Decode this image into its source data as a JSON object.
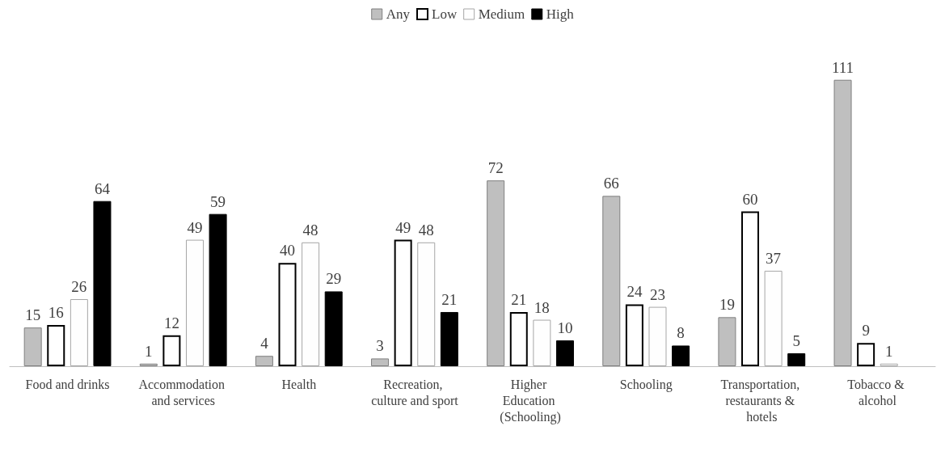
{
  "chart_data": {
    "type": "bar",
    "categories": [
      "Food and drinks",
      "Accommodation and services",
      "Health",
      "Recreation, culture and sport",
      "Higher Education (Schooling)",
      "Schooling",
      "Transportation, restaurants & hotels",
      "Tobacco & alcohol"
    ],
    "series": [
      {
        "name": "Any",
        "color": "#bfbfbf",
        "values": [
          15,
          1,
          4,
          3,
          72,
          66,
          19,
          111
        ]
      },
      {
        "name": "Low",
        "color": "#ffffff",
        "values": [
          16,
          12,
          40,
          49,
          21,
          24,
          60,
          9
        ]
      },
      {
        "name": "Medium",
        "color": "#fefefe",
        "values": [
          26,
          49,
          48,
          48,
          18,
          23,
          37,
          1
        ]
      },
      {
        "name": "High",
        "color": "#000000",
        "values": [
          64,
          59,
          29,
          21,
          10,
          8,
          5,
          null
        ]
      }
    ],
    "data_labels": true,
    "legend": "top",
    "grid": false
  }
}
